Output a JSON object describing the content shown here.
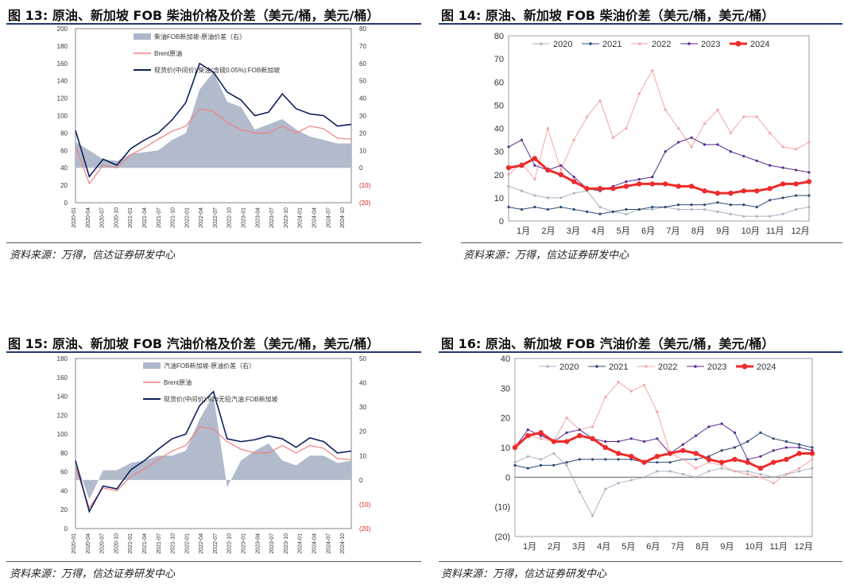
{
  "panels": [
    {
      "figure_label": "图 13:",
      "figure_title": "原油、新加坡 FOB 柴油价格及价差（美元/桶，美元/桶）",
      "source": "资料来源：万得，信达证券研发中心"
    },
    {
      "figure_label": "图 14:",
      "figure_title": "原油、新加坡 FOB 柴油价差（美元/桶，美元/桶）",
      "source": "资料来源：万得，信达证券研发中心"
    },
    {
      "figure_label": "图 15:",
      "figure_title": "原油、新加坡 FOB 汽油价格及价差（美元/桶，美元/桶）",
      "source": "资料来源：万得，信达证券研发中心"
    },
    {
      "figure_label": "图 16:",
      "figure_title": "原油、新加坡 FOB 汽油价差（美元/桶，美元/桶）",
      "source": "资料来源：万得，信达证券研发中心"
    }
  ],
  "chart_data": [
    {
      "type": "area",
      "dates": [
        "2020-01",
        "2020-04",
        "2020-07",
        "2020-10",
        "2021-01",
        "2021-04",
        "2021-07",
        "2021-10",
        "2022-01",
        "2022-04",
        "2022-07",
        "2022-10",
        "2023-01",
        "2023-04",
        "2023-07",
        "2023-10",
        "2024-01",
        "2024-04",
        "2024-07",
        "2024-10",
        "2024-12"
      ],
      "x_tick_labels": [
        "2020-01",
        "2020-04",
        "2020-07",
        "2020-10",
        "2021-01",
        "2021-04",
        "2021-07",
        "2021-10",
        "2022-01",
        "2022-04",
        "2022-07",
        "2022-10",
        "2023-01",
        "2023-04",
        "2023-07",
        "2023-10",
        "2024-01",
        "2024-04",
        "2024-07",
        "2024-10"
      ],
      "left_axis": {
        "min": 0,
        "max": 200,
        "ticks": [
          0,
          20,
          40,
          60,
          80,
          100,
          120,
          140,
          160,
          180,
          200
        ]
      },
      "right_axis": {
        "min": -20,
        "max": 80,
        "ticks": [
          "(20)",
          "(10)",
          "0",
          "10",
          "20",
          "30",
          "40",
          "50",
          "60",
          "70",
          "80"
        ],
        "tick_values": [
          -20,
          -10,
          0,
          10,
          20,
          30,
          40,
          50,
          60,
          70,
          80
        ]
      },
      "series": [
        {
          "name": "柴油FOB新加坡-原油价差（右）",
          "axis": "right",
          "kind": "area",
          "color": "#aeb7c9",
          "values": [
            15,
            10,
            5,
            4,
            8,
            9,
            10,
            16,
            20,
            45,
            55,
            38,
            35,
            22,
            25,
            28,
            22,
            18,
            16,
            14,
            14
          ]
        },
        {
          "name": "Brent原油",
          "axis": "left",
          "kind": "line",
          "color": "#f08080",
          "values": [
            65,
            22,
            43,
            40,
            55,
            63,
            73,
            82,
            88,
            108,
            105,
            92,
            84,
            80,
            80,
            88,
            80,
            88,
            85,
            74,
            73
          ]
        },
        {
          "name": "现货价(中间价):柴油(含硫0.05%):FOB新加坡",
          "axis": "left",
          "kind": "line",
          "color": "#0d1f5c",
          "values": [
            83,
            30,
            50,
            43,
            62,
            72,
            80,
            95,
            115,
            160,
            150,
            127,
            118,
            100,
            104,
            125,
            108,
            102,
            100,
            88,
            90
          ]
        }
      ]
    },
    {
      "type": "line",
      "x_tick_labels": [
        "1月",
        "2月",
        "3月",
        "4月",
        "5月",
        "6月",
        "7月",
        "8月",
        "9月",
        "10月",
        "11月",
        "12月"
      ],
      "y_axis": {
        "min": 0,
        "max": 80,
        "ticks": [
          0,
          10,
          20,
          30,
          40,
          50,
          60,
          70,
          80
        ]
      },
      "series": [
        {
          "name": "2020",
          "color": "#aab4c2",
          "values": [
            15,
            13,
            11,
            10,
            10,
            12,
            13,
            6,
            4,
            3,
            5,
            5,
            6,
            5,
            5,
            5,
            4,
            3,
            2,
            2,
            2,
            3,
            5,
            6
          ]
        },
        {
          "name": "2021",
          "color": "#2d4a73",
          "values": [
            6,
            5,
            6,
            5,
            6,
            5,
            4,
            3,
            4,
            5,
            5,
            6,
            6,
            7,
            7,
            7,
            8,
            7,
            7,
            6,
            9,
            10,
            11,
            11
          ]
        },
        {
          "name": "2022",
          "color": "#f4a5a5",
          "values": [
            20,
            25,
            18,
            40,
            22,
            35,
            45,
            52,
            36,
            40,
            55,
            65,
            48,
            40,
            32,
            42,
            48,
            38,
            45,
            45,
            38,
            32,
            31,
            34
          ]
        },
        {
          "name": "2023",
          "color": "#5b2a8e",
          "values": [
            32,
            35,
            24,
            22,
            24,
            19,
            14,
            13,
            15,
            17,
            18,
            19,
            30,
            34,
            36,
            33,
            33,
            30,
            28,
            26,
            24,
            23,
            22,
            21
          ]
        },
        {
          "name": "2024",
          "color": "#ee2b2b",
          "values": [
            23,
            24,
            27,
            22,
            20,
            17,
            14,
            14,
            14,
            15,
            16,
            16,
            16,
            15,
            15,
            13,
            12,
            12,
            13,
            13,
            14,
            16,
            16,
            17
          ]
        }
      ]
    },
    {
      "type": "area",
      "dates": [
        "2020-01",
        "2020-04",
        "2020-07",
        "2020-10",
        "2021-01",
        "2021-04",
        "2021-07",
        "2021-10",
        "2022-01",
        "2022-04",
        "2022-07",
        "2022-10",
        "2023-01",
        "2023-04",
        "2023-07",
        "2023-10",
        "2024-01",
        "2024-04",
        "2024-07",
        "2024-10",
        "2024-12"
      ],
      "x_tick_labels": [
        "2020-01",
        "2020-04",
        "2020-07",
        "2020-10",
        "2021-01",
        "2021-04",
        "2021-07",
        "2021-10",
        "2022-01",
        "2022-04",
        "2022-07",
        "2022-10",
        "2023-01",
        "2023-04",
        "2023-07",
        "2023-10",
        "2024-01",
        "2024-04",
        "2024-07",
        "2024-10"
      ],
      "left_axis": {
        "min": 0,
        "max": 180,
        "ticks": [
          0,
          20,
          40,
          60,
          80,
          100,
          120,
          140,
          160,
          180
        ]
      },
      "right_axis": {
        "min": -20,
        "max": 50,
        "ticks": [
          "(20)",
          "(10)",
          "0",
          "10",
          "20",
          "30",
          "40",
          "50"
        ],
        "tick_values": [
          -20,
          -10,
          0,
          10,
          20,
          30,
          40,
          50
        ]
      },
      "series": [
        {
          "name": "汽油FOB新加坡-原油价差（右）",
          "axis": "right",
          "kind": "area",
          "color": "#aeb7c9",
          "values": [
            8,
            -8,
            4,
            4,
            7,
            8,
            10,
            10,
            12,
            25,
            35,
            -3,
            8,
            12,
            15,
            8,
            6,
            10,
            10,
            7,
            8
          ]
        },
        {
          "name": "Brent原油",
          "axis": "left",
          "kind": "line",
          "color": "#f08080",
          "values": [
            65,
            22,
            43,
            40,
            55,
            63,
            73,
            82,
            88,
            108,
            105,
            92,
            84,
            80,
            80,
            88,
            80,
            88,
            85,
            74,
            73
          ]
        },
        {
          "name": "现货价(中间价):92#无铅汽油:FOB新加坡",
          "axis": "left",
          "kind": "line",
          "color": "#0d1f5c",
          "values": [
            72,
            18,
            45,
            42,
            62,
            72,
            84,
            95,
            100,
            130,
            145,
            95,
            92,
            94,
            98,
            95,
            86,
            96,
            92,
            80,
            82
          ]
        }
      ]
    },
    {
      "type": "line",
      "x_tick_labels": [
        "1月",
        "2月",
        "3月",
        "4月",
        "5月",
        "6月",
        "7月",
        "8月",
        "9月",
        "10月",
        "11月",
        "12月"
      ],
      "y_axis": {
        "min": -20,
        "max": 40,
        "ticks": [
          "(20)",
          "(10)",
          "0",
          "10",
          "20",
          "30",
          "40"
        ],
        "tick_values": [
          -20,
          -10,
          0,
          10,
          20,
          30,
          40
        ]
      },
      "series": [
        {
          "name": "2020",
          "color": "#aab4c2",
          "values": [
            5,
            7,
            6,
            8,
            4,
            -5,
            -13,
            -4,
            -2,
            -1,
            0,
            2,
            2,
            1,
            0,
            2,
            3,
            2,
            2,
            1,
            0,
            1,
            2,
            3
          ]
        },
        {
          "name": "2021",
          "color": "#2d4a73",
          "values": [
            4,
            3,
            4,
            4,
            5,
            6,
            6,
            6,
            6,
            6,
            5,
            5,
            5,
            6,
            6,
            7,
            9,
            10,
            12,
            15,
            13,
            12,
            11,
            10
          ]
        },
        {
          "name": "2022",
          "color": "#f4a5a5",
          "values": [
            11,
            14,
            13,
            12,
            20,
            16,
            17,
            27,
            32,
            29,
            31,
            22,
            8,
            6,
            3,
            5,
            4,
            2,
            1,
            0,
            -2,
            1,
            3,
            6
          ]
        },
        {
          "name": "2023",
          "color": "#5b2a8e",
          "values": [
            10,
            16,
            14,
            12,
            15,
            16,
            13,
            12,
            12,
            13,
            12,
            13,
            8,
            11,
            14,
            17,
            18,
            15,
            6,
            7,
            9,
            10,
            10,
            9
          ]
        },
        {
          "name": "2024",
          "color": "#ee2b2b",
          "values": [
            10,
            14,
            15,
            12,
            12,
            14,
            13,
            10,
            8,
            7,
            5,
            7,
            8,
            9,
            8,
            6,
            5,
            6,
            5,
            3,
            5,
            6,
            8,
            8
          ]
        }
      ]
    }
  ]
}
